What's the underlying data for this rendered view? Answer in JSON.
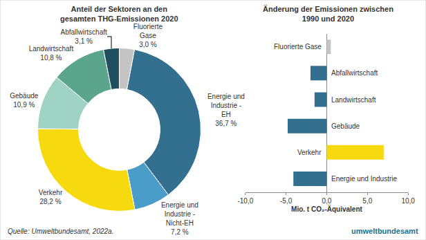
{
  "chart_data": [
    {
      "type": "pie",
      "title": "Anteil der Sektoren an den gesamten THG-Emissionen 2020",
      "categories": [
        "Fluorierte Gase",
        "Energie und Industrie - EH",
        "Energie und Industrie - Nicht-EH",
        "Verkehr",
        "Gebäude",
        "Landwirtschaft",
        "Abfallwirtschaft"
      ],
      "values": [
        3.0,
        36.7,
        7.2,
        28.2,
        10.9,
        10.8,
        3.1
      ],
      "value_labels": [
        "3,0 %",
        "36,7 %",
        "7,2 %",
        "28,2 %",
        "10,9 %",
        "10,8 %",
        "3,1 %"
      ],
      "colors": [
        "#c4c4c4",
        "#336f8f",
        "#4a9cc9",
        "#f7d90f",
        "#9fd3c3",
        "#5aa58b",
        "#1f4e5f"
      ],
      "data_labels": true
    },
    {
      "type": "bar",
      "title": "Änderung der Emissionen zwischen 1990 und 2020",
      "orientation": "horizontal",
      "categories": [
        "Fluorierte Gase",
        "Abfallwirtschaft",
        "Landwirtschaft",
        "Gebäude",
        "Verkehr",
        "Energie und Industrie"
      ],
      "values": [
        0.5,
        -2.0,
        -1.5,
        -4.8,
        7.0,
        -4.1
      ],
      "colors": [
        "#c4c4c4",
        "#336f8f",
        "#336f8f",
        "#336f8f",
        "#f7d90f",
        "#336f8f"
      ],
      "xlabel": "Mio. t CO₂-Äquivalent",
      "xlim": [
        -10,
        10
      ],
      "xticks": [
        {
          "value": -10,
          "label": "-10,0"
        },
        {
          "value": -5,
          "label": "-5,0"
        },
        {
          "value": 0,
          "label": "0,0"
        },
        {
          "value": 5,
          "label": "5,0"
        },
        {
          "value": 10,
          "label": "10,0"
        }
      ],
      "grid": false,
      "tick_labels": "x"
    }
  ],
  "source": "Quelle: Umweltbundesamt, 2022a.",
  "logo": "umweltbundesamt"
}
